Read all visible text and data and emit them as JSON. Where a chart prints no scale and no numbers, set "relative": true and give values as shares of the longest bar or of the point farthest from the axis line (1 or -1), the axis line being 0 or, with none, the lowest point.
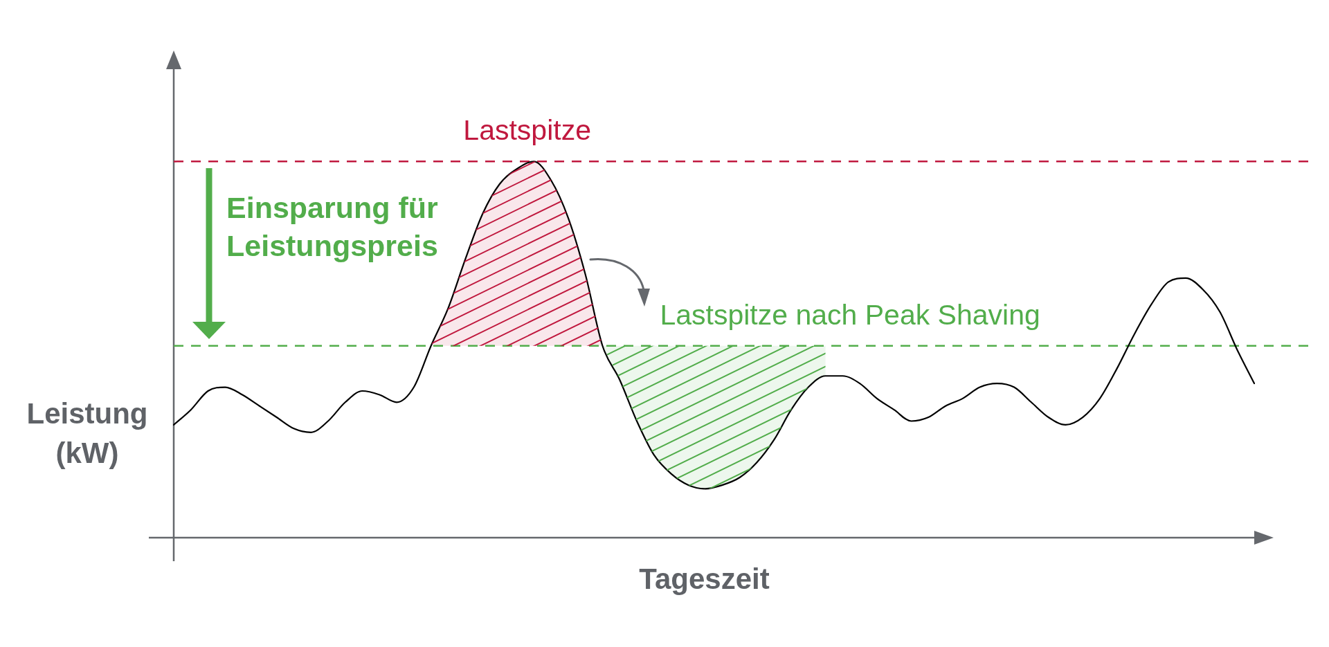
{
  "chart_data": {
    "type": "line",
    "relative": true,
    "xlabel": "Tageszeit",
    "ylabel": "Leistung (kW)",
    "tick_labels": false,
    "categories": [
      null,
      null,
      null,
      null,
      null,
      null,
      null,
      null,
      null,
      null,
      null,
      null,
      null,
      null,
      null,
      null,
      null,
      null,
      null,
      null,
      null,
      null,
      null,
      null,
      null,
      null,
      null,
      null,
      null,
      null,
      null,
      null,
      null,
      null,
      null,
      null,
      null,
      null,
      null,
      null,
      null,
      null,
      null,
      null,
      null,
      null,
      null,
      null,
      null,
      null,
      null,
      null,
      null,
      null,
      null,
      null,
      null,
      null,
      null,
      null,
      null,
      null,
      null,
      null
    ],
    "series": [
      {
        "type": "line",
        "color": "#000000",
        "values": [
          0.3,
          0.34,
          0.39,
          0.4,
          0.38,
          0.35,
          0.32,
          0.29,
          0.28,
          0.31,
          0.36,
          0.39,
          0.38,
          0.36,
          0.4,
          0.51,
          0.61,
          0.74,
          0.86,
          0.94,
          0.98,
          1,
          0.95,
          0.85,
          0.7,
          0.51,
          0.42,
          0.31,
          0.22,
          0.17,
          0.14,
          0.13,
          0.14,
          0.16,
          0.2,
          0.26,
          0.34,
          0.4,
          0.43,
          0.43,
          0.41,
          0.37,
          0.34,
          0.31,
          0.32,
          0.35,
          0.37,
          0.4,
          0.41,
          0.4,
          0.36,
          0.32,
          0.3,
          0.32,
          0.37,
          0.45,
          0.54,
          0.62,
          0.68,
          0.69,
          0.66,
          0.6,
          0.5,
          0.41
        ]
      },
      {
        "type": "line",
        "color": "#c0183e",
        "values": [
          null,
          null,
          null,
          null,
          null,
          null,
          null,
          null,
          null,
          null,
          null,
          null,
          null,
          null,
          null,
          null,
          null,
          null,
          null,
          null,
          null,
          null,
          null,
          null,
          null,
          null,
          null,
          null,
          null,
          null,
          null,
          null,
          null,
          null,
          null,
          null,
          null,
          null,
          null,
          null,
          null,
          null,
          null,
          null,
          null,
          null,
          null,
          null,
          null,
          null,
          null,
          null,
          null,
          null,
          null,
          null,
          null,
          null,
          null,
          null,
          null,
          null,
          null,
          null
        ],
        "lower": [
          null,
          null,
          null,
          null,
          null,
          null,
          null,
          null,
          null,
          null,
          null,
          null,
          null,
          null,
          null,
          0.51,
          0.51,
          0.51,
          0.51,
          0.51,
          0.51,
          0.51,
          0.51,
          0.51,
          0.51,
          0.51,
          null,
          null,
          null,
          null,
          null,
          null,
          null,
          null,
          null,
          null,
          null,
          null,
          null,
          null,
          null,
          null,
          null,
          null,
          null,
          null,
          null,
          null,
          null,
          null,
          null,
          null,
          null,
          null,
          null,
          null,
          null,
          null,
          null,
          null,
          null,
          null,
          null,
          null
        ],
        "upper": [
          null,
          null,
          null,
          null,
          null,
          null,
          null,
          null,
          null,
          null,
          null,
          null,
          null,
          null,
          null,
          0.51,
          0.61,
          0.74,
          0.86,
          0.94,
          0.98,
          1,
          0.95,
          0.85,
          0.7,
          0.51,
          null,
          null,
          null,
          null,
          null,
          null,
          null,
          null,
          null,
          null,
          null,
          null,
          null,
          null,
          null,
          null,
          null,
          null,
          null,
          null,
          null,
          null,
          null,
          null,
          null,
          null,
          null,
          null,
          null,
          null,
          null,
          null,
          null,
          null,
          null,
          null,
          null,
          null
        ]
      },
      {
        "type": "line",
        "color": "#52ad4b",
        "values": [
          null,
          null,
          null,
          null,
          null,
          null,
          null,
          null,
          null,
          null,
          null,
          null,
          null,
          null,
          null,
          null,
          null,
          null,
          null,
          null,
          null,
          null,
          null,
          null,
          null,
          null,
          null,
          null,
          null,
          null,
          null,
          null,
          null,
          null,
          null,
          null,
          null,
          null,
          null,
          null,
          null,
          null,
          null,
          null,
          null,
          null,
          null,
          null,
          null,
          null,
          null,
          null,
          null,
          null,
          null,
          null,
          null,
          null,
          null,
          null,
          null,
          null,
          null,
          null
        ],
        "lower": [
          null,
          null,
          null,
          null,
          null,
          null,
          null,
          null,
          null,
          null,
          null,
          null,
          null,
          null,
          null,
          null,
          null,
          null,
          null,
          null,
          null,
          null,
          null,
          null,
          null,
          0.51,
          0.42,
          0.31,
          0.22,
          0.17,
          0.14,
          0.13,
          0.14,
          0.16,
          0.2,
          0.26,
          0.34,
          0.4,
          0.43,
          null,
          null,
          null,
          null,
          null,
          null,
          null,
          null,
          null,
          null,
          null,
          null,
          null,
          null,
          null,
          null,
          null,
          null,
          null,
          null,
          null,
          null,
          null,
          null,
          null
        ],
        "upper": [
          null,
          null,
          null,
          null,
          null,
          null,
          null,
          null,
          null,
          null,
          null,
          null,
          null,
          null,
          null,
          null,
          null,
          null,
          null,
          null,
          null,
          null,
          null,
          null,
          null,
          0.51,
          0.51,
          0.51,
          0.51,
          0.51,
          0.51,
          0.51,
          0.51,
          0.51,
          0.51,
          0.51,
          0.51,
          0.51,
          0.51,
          null,
          null,
          null,
          null,
          null,
          null,
          null,
          null,
          null,
          null,
          null,
          null,
          null,
          null,
          null,
          null,
          null,
          null,
          null,
          null,
          null,
          null,
          null,
          null,
          null
        ]
      }
    ],
    "ref_lines": [
      {
        "axis": "y",
        "value": 1,
        "label": "Lastspitze",
        "color": "#c0183e",
        "line_style": "dashed"
      },
      {
        "axis": "y",
        "value": 0.51,
        "label": "Lastspitze nach Peak Shaving",
        "color": "#52ad4b",
        "line_style": "dashed"
      }
    ],
    "annotations": [
      "Einsparung für Leistungspreis"
    ]
  }
}
